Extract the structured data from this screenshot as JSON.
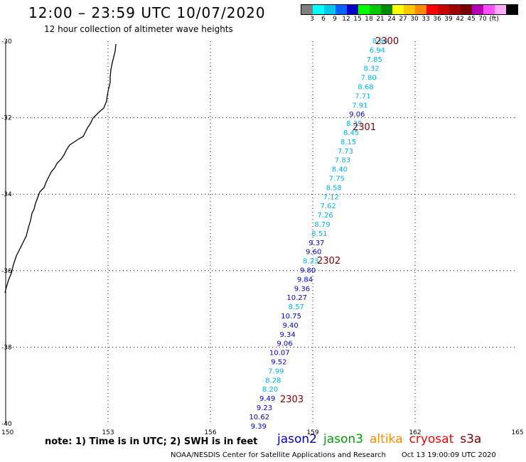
{
  "header": {
    "title": "12:00 – 23:59 UTC 10/07/2020",
    "subtitle": "12 hour collection of altimeter wave heights"
  },
  "color_scale": {
    "colors": [
      "#7f7f7f",
      "#00ffff",
      "#00c8e8",
      "#0064ff",
      "#0000c8",
      "#00ff00",
      "#00c800",
      "#008c00",
      "#ffff00",
      "#ffc800",
      "#ff8c00",
      "#ff0000",
      "#c80000",
      "#a00000",
      "#780000",
      "#b400b4",
      "#ff50ff",
      "#ffaaff",
      "#000000"
    ],
    "labels": [
      "3",
      "6",
      "9",
      "12",
      "15",
      "18",
      "21",
      "24",
      "27",
      "30",
      "33",
      "36",
      "39",
      "42",
      "45",
      "70",
      "(ft)"
    ]
  },
  "axes": {
    "lat_labels": [
      "-30",
      "-32",
      "-34",
      "-36",
      "-38",
      "-40"
    ],
    "lon_labels": [
      "150",
      "153",
      "156",
      "159",
      "162",
      "165"
    ]
  },
  "track_times": [
    {
      "text": "2300"
    },
    {
      "text": "2301"
    },
    {
      "text": "2302"
    },
    {
      "text": "2303"
    }
  ],
  "readings": [
    {
      "v": "8.64",
      "sat": "jason3"
    },
    {
      "v": "6.94",
      "sat": "jason3"
    },
    {
      "v": "7.85",
      "sat": "jason3"
    },
    {
      "v": "8.32",
      "sat": "jason3"
    },
    {
      "v": "7.80",
      "sat": "jason3"
    },
    {
      "v": "8.68",
      "sat": "jason3"
    },
    {
      "v": "7.71",
      "sat": "jason3"
    },
    {
      "v": "7.91",
      "sat": "jason3"
    },
    {
      "v": "9.06",
      "sat": "jason2"
    },
    {
      "v": "8.39",
      "sat": "jason3"
    },
    {
      "v": "8.45",
      "sat": "jason3"
    },
    {
      "v": "8.15",
      "sat": "jason3"
    },
    {
      "v": "7.73",
      "sat": "jason3"
    },
    {
      "v": "7.83",
      "sat": "jason3"
    },
    {
      "v": "8.40",
      "sat": "jason3"
    },
    {
      "v": "7.75",
      "sat": "jason3"
    },
    {
      "v": "8.58",
      "sat": "jason3"
    },
    {
      "v": "7.12",
      "sat": "jason3"
    },
    {
      "v": "7.62",
      "sat": "jason3"
    },
    {
      "v": "7.26",
      "sat": "jason3"
    },
    {
      "v": "8.79",
      "sat": "jason3"
    },
    {
      "v": "8.51",
      "sat": "jason3"
    },
    {
      "v": "9.37",
      "sat": "jason2"
    },
    {
      "v": "9.60",
      "sat": "jason2"
    },
    {
      "v": "8.23",
      "sat": "jason3"
    },
    {
      "v": "9.80",
      "sat": "jason2"
    },
    {
      "v": "9.84",
      "sat": "jason2"
    },
    {
      "v": "9.36",
      "sat": "jason2"
    },
    {
      "v": "10.27",
      "sat": "jason2"
    },
    {
      "v": "8.57",
      "sat": "jason3"
    },
    {
      "v": "10.75",
      "sat": "jason2"
    },
    {
      "v": "9.40",
      "sat": "jason2"
    },
    {
      "v": "9.34",
      "sat": "jason2"
    },
    {
      "v": "9.06",
      "sat": "jason2"
    },
    {
      "v": "10.07",
      "sat": "jason2"
    },
    {
      "v": "9.52",
      "sat": "jason2"
    },
    {
      "v": "7.99",
      "sat": "jason3"
    },
    {
      "v": "8.28",
      "sat": "jason3"
    },
    {
      "v": "8.20",
      "sat": "jason3"
    },
    {
      "v": "9.49",
      "sat": "jason2"
    },
    {
      "v": "9.23",
      "sat": "jason2"
    },
    {
      "v": "10.62",
      "sat": "jason2"
    },
    {
      "v": "9.39",
      "sat": "jason2"
    }
  ],
  "note": "note: 1) Time is in UTC; 2) SWH is in feet",
  "satellites": [
    {
      "name": "jason2",
      "color": "#0000c8"
    },
    {
      "name": "jason3",
      "color": "#00a000"
    },
    {
      "name": "altika",
      "color": "#ff8c00"
    },
    {
      "name": "cryosat",
      "color": "#ff0000"
    },
    {
      "name": "s3a",
      "color": "#780000"
    }
  ],
  "footer": {
    "credit": "NOAA/NESDIS Center for Satellite Applications and Research",
    "timestamp": "Oct 13 19:00:09 UTC 2020"
  },
  "colors": {
    "time_label": "#780000",
    "jason3_value": "#00b4e6",
    "jason2_value": "#0000c8"
  }
}
